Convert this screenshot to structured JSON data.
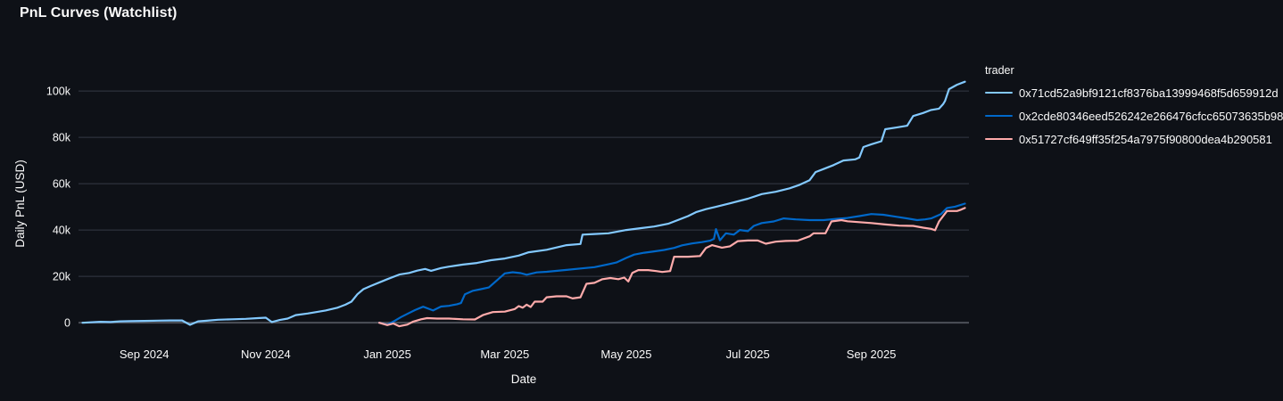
{
  "page": {
    "title": "PnL Curves (Watchlist)"
  },
  "chart_data": {
    "type": "line",
    "title": "PnL Curves (Watchlist)",
    "xlabel": "Date",
    "ylabel": "Daily PnL (USD)",
    "legend_title": "trader",
    "legend_position": "right",
    "grid": "horizontal-only",
    "background_color": "#0e1117",
    "text_color": "#fafafa",
    "grid_color": "#363b45",
    "zero_line_color": "#4c5058",
    "x_range": [
      "2024-07-30",
      "2025-10-20"
    ],
    "y_range_usd": [
      -5700,
      108500
    ],
    "x_ticks": [
      {
        "date": "2024-09-01",
        "label": "Sep 2024"
      },
      {
        "date": "2024-11-01",
        "label": "Nov 2024"
      },
      {
        "date": "2025-01-01",
        "label": "Jan 2025"
      },
      {
        "date": "2025-03-01",
        "label": "Mar 2025"
      },
      {
        "date": "2025-05-01",
        "label": "May 2025"
      },
      {
        "date": "2025-07-01",
        "label": "Jul 2025"
      },
      {
        "date": "2025-09-01",
        "label": "Sep 2025"
      }
    ],
    "y_ticks": [
      {
        "value": 0,
        "label": "0"
      },
      {
        "value": 20000,
        "label": "20k"
      },
      {
        "value": 40000,
        "label": "40k"
      },
      {
        "value": 60000,
        "label": "60k"
      },
      {
        "value": 80000,
        "label": "80k"
      },
      {
        "value": 100000,
        "label": "100k"
      }
    ],
    "series": [
      {
        "name": "0x71cd52a9bf9121cf8376ba13999468f5d659912d",
        "color": "#83c9ff",
        "points": [
          [
            "2024-08-01",
            0
          ],
          [
            "2024-08-05",
            200
          ],
          [
            "2024-08-10",
            400
          ],
          [
            "2024-08-15",
            300
          ],
          [
            "2024-08-20",
            600
          ],
          [
            "2024-08-25",
            700
          ],
          [
            "2024-09-01",
            800
          ],
          [
            "2024-09-08",
            900
          ],
          [
            "2024-09-14",
            1000
          ],
          [
            "2024-09-20",
            1000
          ],
          [
            "2024-09-24",
            -900
          ],
          [
            "2024-09-28",
            600
          ],
          [
            "2024-10-01",
            800
          ],
          [
            "2024-10-08",
            1300
          ],
          [
            "2024-10-15",
            1500
          ],
          [
            "2024-10-22",
            1700
          ],
          [
            "2024-10-28",
            2000
          ],
          [
            "2024-11-01",
            2200
          ],
          [
            "2024-11-04",
            300
          ],
          [
            "2024-11-08",
            1200
          ],
          [
            "2024-11-12",
            1800
          ],
          [
            "2024-11-16",
            3300
          ],
          [
            "2024-11-22",
            4000
          ],
          [
            "2024-12-01",
            5300
          ],
          [
            "2024-12-07",
            6500
          ],
          [
            "2024-12-11",
            7800
          ],
          [
            "2024-12-14",
            9100
          ],
          [
            "2024-12-17",
            12300
          ],
          [
            "2024-12-20",
            14500
          ],
          [
            "2024-12-24",
            16000
          ],
          [
            "2025-01-01",
            18800
          ],
          [
            "2025-01-07",
            20800
          ],
          [
            "2025-01-12",
            21500
          ],
          [
            "2025-01-16",
            22500
          ],
          [
            "2025-01-20",
            23200
          ],
          [
            "2025-01-23",
            22400
          ],
          [
            "2025-01-28",
            23600
          ],
          [
            "2025-02-01",
            24200
          ],
          [
            "2025-02-08",
            25100
          ],
          [
            "2025-02-15",
            25800
          ],
          [
            "2025-02-22",
            27000
          ],
          [
            "2025-03-01",
            27700
          ],
          [
            "2025-03-08",
            29000
          ],
          [
            "2025-03-13",
            30400
          ],
          [
            "2025-03-22",
            31500
          ],
          [
            "2025-04-01",
            33500
          ],
          [
            "2025-04-08",
            34000
          ],
          [
            "2025-04-09",
            38000
          ],
          [
            "2025-04-15",
            38300
          ],
          [
            "2025-04-22",
            38600
          ],
          [
            "2025-05-01",
            40000
          ],
          [
            "2025-05-08",
            40800
          ],
          [
            "2025-05-15",
            41500
          ],
          [
            "2025-05-22",
            42700
          ],
          [
            "2025-06-01",
            46000
          ],
          [
            "2025-06-05",
            47700
          ],
          [
            "2025-06-10",
            49000
          ],
          [
            "2025-06-15",
            50000
          ],
          [
            "2025-06-22",
            51500
          ],
          [
            "2025-07-01",
            53500
          ],
          [
            "2025-07-08",
            55500
          ],
          [
            "2025-07-15",
            56500
          ],
          [
            "2025-07-22",
            58000
          ],
          [
            "2025-07-27",
            59500
          ],
          [
            "2025-08-01",
            61500
          ],
          [
            "2025-08-04",
            65000
          ],
          [
            "2025-08-08",
            66300
          ],
          [
            "2025-08-13",
            68000
          ],
          [
            "2025-08-18",
            70000
          ],
          [
            "2025-08-24",
            70500
          ],
          [
            "2025-08-26",
            71300
          ],
          [
            "2025-08-28",
            75800
          ],
          [
            "2025-09-01",
            77000
          ],
          [
            "2025-09-06",
            78300
          ],
          [
            "2025-09-08",
            83500
          ],
          [
            "2025-09-14",
            84300
          ],
          [
            "2025-09-19",
            85000
          ],
          [
            "2025-09-22",
            89200
          ],
          [
            "2025-09-27",
            90500
          ],
          [
            "2025-10-01",
            91800
          ],
          [
            "2025-10-05",
            92400
          ],
          [
            "2025-10-07",
            94300
          ],
          [
            "2025-10-08",
            95700
          ],
          [
            "2025-10-10",
            100800
          ],
          [
            "2025-10-14",
            102700
          ],
          [
            "2025-10-18",
            104000
          ]
        ]
      },
      {
        "name": "0x2cde80346eed526242e266476cfcc65073635b98",
        "color": "#0068c9",
        "points": [
          [
            "2024-12-28",
            0
          ],
          [
            "2025-01-01",
            -800
          ],
          [
            "2025-01-04",
            500
          ],
          [
            "2025-01-08",
            2500
          ],
          [
            "2025-01-11",
            3800
          ],
          [
            "2025-01-15",
            5500
          ],
          [
            "2025-01-19",
            6900
          ],
          [
            "2025-01-24",
            5300
          ],
          [
            "2025-01-28",
            7000
          ],
          [
            "2025-02-01",
            7300
          ],
          [
            "2025-02-05",
            8000
          ],
          [
            "2025-02-07",
            8500
          ],
          [
            "2025-02-09",
            12300
          ],
          [
            "2025-02-13",
            13800
          ],
          [
            "2025-02-17",
            14500
          ],
          [
            "2025-02-21",
            15200
          ],
          [
            "2025-02-24",
            17500
          ],
          [
            "2025-03-01",
            21300
          ],
          [
            "2025-03-05",
            21800
          ],
          [
            "2025-03-09",
            21400
          ],
          [
            "2025-03-12",
            20700
          ],
          [
            "2025-03-17",
            21700
          ],
          [
            "2025-03-22",
            22000
          ],
          [
            "2025-04-01",
            22800
          ],
          [
            "2025-04-08",
            23400
          ],
          [
            "2025-04-15",
            24000
          ],
          [
            "2025-04-22",
            25200
          ],
          [
            "2025-04-26",
            26000
          ],
          [
            "2025-05-01",
            28000
          ],
          [
            "2025-05-05",
            29400
          ],
          [
            "2025-05-10",
            30200
          ],
          [
            "2025-05-15",
            30800
          ],
          [
            "2025-05-20",
            31400
          ],
          [
            "2025-05-25",
            32300
          ],
          [
            "2025-05-29",
            33400
          ],
          [
            "2025-06-03",
            34200
          ],
          [
            "2025-06-08",
            34800
          ],
          [
            "2025-06-12",
            35400
          ],
          [
            "2025-06-14",
            36200
          ],
          [
            "2025-06-15",
            40400
          ],
          [
            "2025-06-17",
            35600
          ],
          [
            "2025-06-20",
            38600
          ],
          [
            "2025-06-24",
            38000
          ],
          [
            "2025-06-27",
            40000
          ],
          [
            "2025-07-01",
            39500
          ],
          [
            "2025-07-04",
            41800
          ],
          [
            "2025-07-08",
            43000
          ],
          [
            "2025-07-14",
            43700
          ],
          [
            "2025-07-19",
            45000
          ],
          [
            "2025-07-25",
            44600
          ],
          [
            "2025-08-01",
            44300
          ],
          [
            "2025-08-08",
            44300
          ],
          [
            "2025-08-14",
            44800
          ],
          [
            "2025-08-20",
            45200
          ],
          [
            "2025-08-26",
            46000
          ],
          [
            "2025-09-01",
            46900
          ],
          [
            "2025-09-07",
            46600
          ],
          [
            "2025-09-13",
            45800
          ],
          [
            "2025-09-19",
            45000
          ],
          [
            "2025-09-24",
            44300
          ],
          [
            "2025-09-28",
            44600
          ],
          [
            "2025-10-01",
            45000
          ],
          [
            "2025-10-06",
            46900
          ],
          [
            "2025-10-09",
            49500
          ],
          [
            "2025-10-13",
            50100
          ],
          [
            "2025-10-18",
            51400
          ]
        ]
      },
      {
        "name": "0x51727cf649ff35f254a7975f90800dea4b290581",
        "color": "#ffabab",
        "points": [
          [
            "2024-12-28",
            0
          ],
          [
            "2025-01-01",
            -1000
          ],
          [
            "2025-01-04",
            -300
          ],
          [
            "2025-01-07",
            -1500
          ],
          [
            "2025-01-11",
            -800
          ],
          [
            "2025-01-14",
            500
          ],
          [
            "2025-01-18",
            1500
          ],
          [
            "2025-01-21",
            2000
          ],
          [
            "2025-01-26",
            1800
          ],
          [
            "2025-02-01",
            1800
          ],
          [
            "2025-02-08",
            1500
          ],
          [
            "2025-02-14",
            1400
          ],
          [
            "2025-02-18",
            3300
          ],
          [
            "2025-02-23",
            4600
          ],
          [
            "2025-03-01",
            4800
          ],
          [
            "2025-03-06",
            5900
          ],
          [
            "2025-03-08",
            7200
          ],
          [
            "2025-03-10",
            6500
          ],
          [
            "2025-03-12",
            7800
          ],
          [
            "2025-03-14",
            6800
          ],
          [
            "2025-03-16",
            9100
          ],
          [
            "2025-03-20",
            9100
          ],
          [
            "2025-03-22",
            11000
          ],
          [
            "2025-03-27",
            11400
          ],
          [
            "2025-04-01",
            11400
          ],
          [
            "2025-04-04",
            10500
          ],
          [
            "2025-04-08",
            11000
          ],
          [
            "2025-04-11",
            16800
          ],
          [
            "2025-04-15",
            17200
          ],
          [
            "2025-04-19",
            18800
          ],
          [
            "2025-04-23",
            19300
          ],
          [
            "2025-04-27",
            18800
          ],
          [
            "2025-04-30",
            19500
          ],
          [
            "2025-05-02",
            17800
          ],
          [
            "2025-05-04",
            21500
          ],
          [
            "2025-05-07",
            22700
          ],
          [
            "2025-05-12",
            22700
          ],
          [
            "2025-05-16",
            22300
          ],
          [
            "2025-05-19",
            21900
          ],
          [
            "2025-05-23",
            22300
          ],
          [
            "2025-05-25",
            28500
          ],
          [
            "2025-06-01",
            28500
          ],
          [
            "2025-06-07",
            28800
          ],
          [
            "2025-06-10",
            32300
          ],
          [
            "2025-06-13",
            33500
          ],
          [
            "2025-06-18",
            32400
          ],
          [
            "2025-06-22",
            33000
          ],
          [
            "2025-06-26",
            35200
          ],
          [
            "2025-07-01",
            35500
          ],
          [
            "2025-07-06",
            35500
          ],
          [
            "2025-07-10",
            34100
          ],
          [
            "2025-07-15",
            35000
          ],
          [
            "2025-07-20",
            35300
          ],
          [
            "2025-07-26",
            35400
          ],
          [
            "2025-08-01",
            37300
          ],
          [
            "2025-08-03",
            38600
          ],
          [
            "2025-08-09",
            38600
          ],
          [
            "2025-08-12",
            43700
          ],
          [
            "2025-08-17",
            44300
          ],
          [
            "2025-08-20",
            43800
          ],
          [
            "2025-08-26",
            43400
          ],
          [
            "2025-09-01",
            43000
          ],
          [
            "2025-09-08",
            42400
          ],
          [
            "2025-09-15",
            41900
          ],
          [
            "2025-09-22",
            41800
          ],
          [
            "2025-09-27",
            41000
          ],
          [
            "2025-10-01",
            40500
          ],
          [
            "2025-10-03",
            39900
          ],
          [
            "2025-10-05",
            43700
          ],
          [
            "2025-10-09",
            48200
          ],
          [
            "2025-10-14",
            48200
          ],
          [
            "2025-10-16",
            48800
          ],
          [
            "2025-10-18",
            49500
          ]
        ]
      }
    ]
  }
}
